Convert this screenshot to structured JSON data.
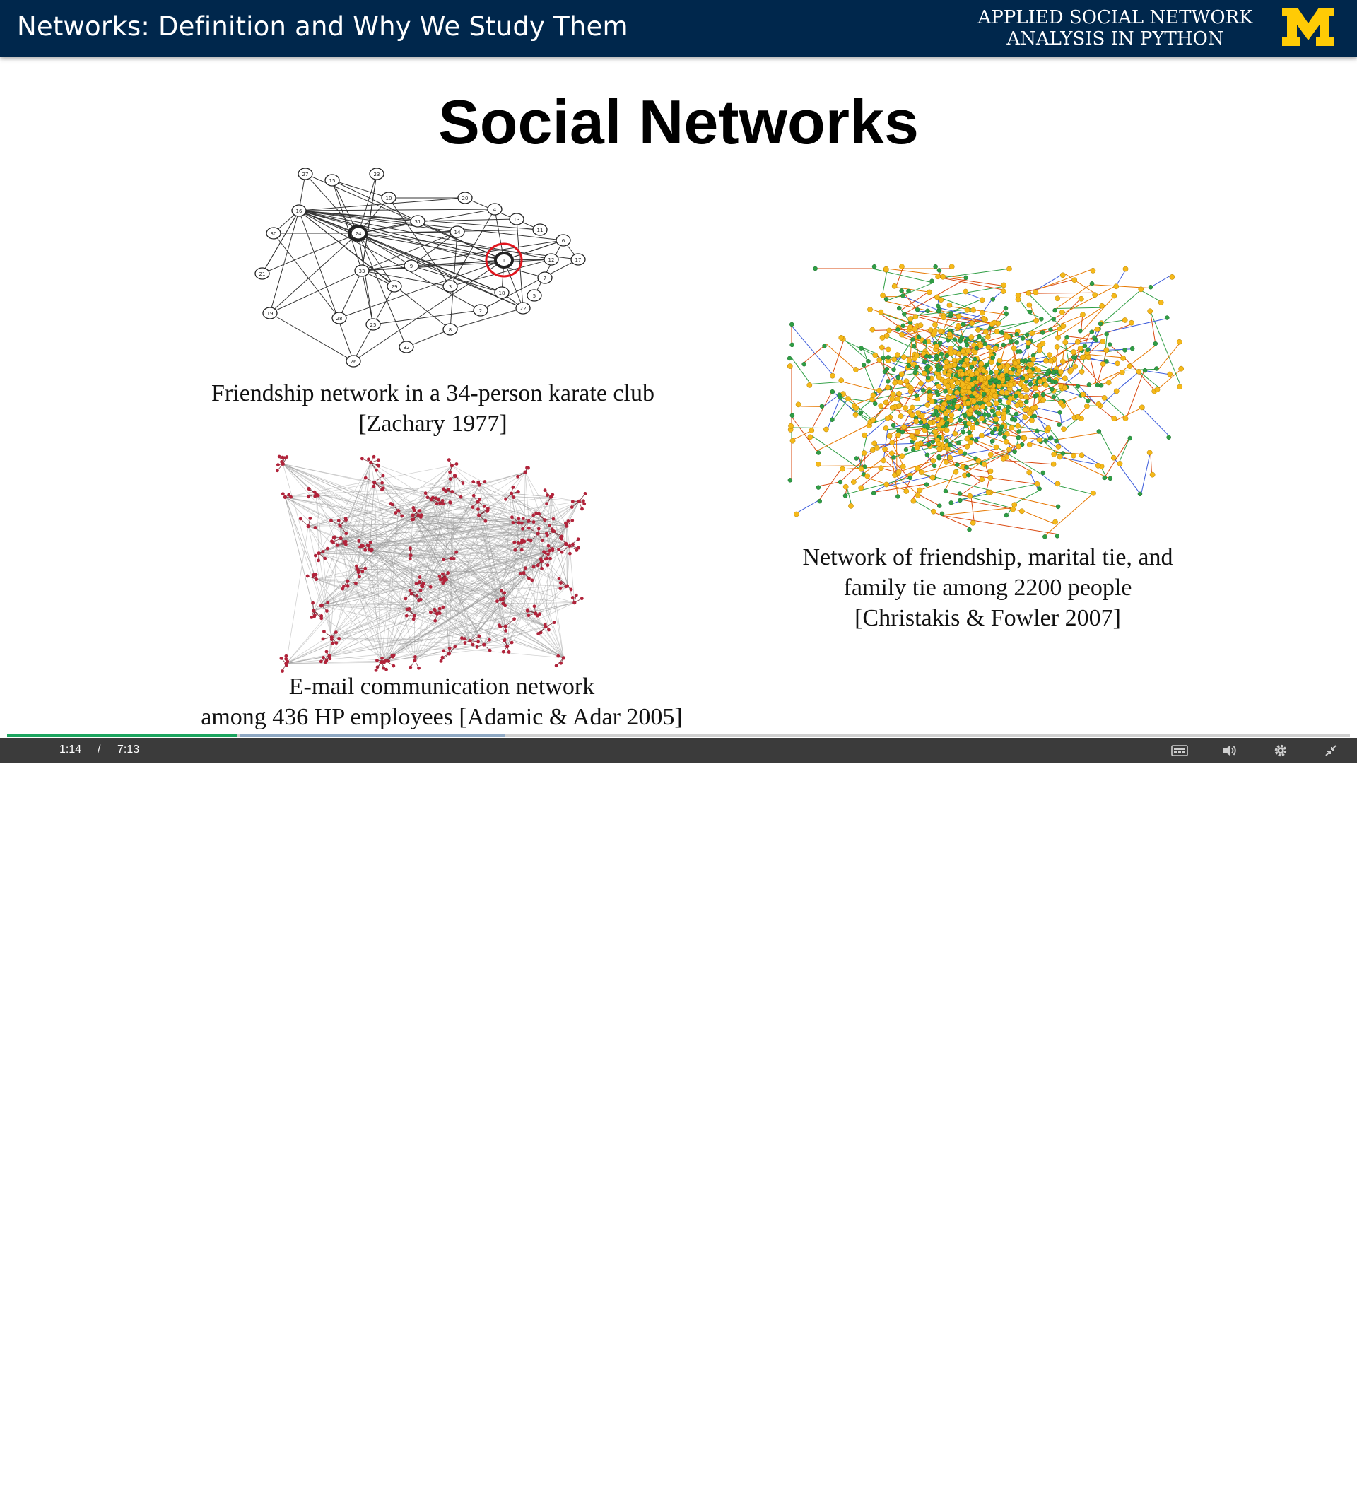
{
  "header": {
    "lecture_title": "Networks: Definition and Why We Study Them",
    "course_line1": "APPLIED SOCIAL NETWORK",
    "course_line2": "ANALYSIS IN PYTHON",
    "logo_letter": "M",
    "bg_color": "#00274c",
    "logo_color": "#ffcb05"
  },
  "slide": {
    "title": "Social Networks",
    "figures": [
      {
        "caption_lines": [
          "Friendship network in a 34-person karate club",
          "[Zachary 1977]"
        ],
        "node_labels": [
          "27",
          "15",
          "23",
          "16",
          "10",
          "20",
          "4",
          "13",
          "11",
          "6",
          "17",
          "34",
          "31",
          "14",
          "1",
          "12",
          "30",
          "24",
          "9",
          "7",
          "21",
          "33",
          "29",
          "3",
          "18",
          "5",
          "19",
          "28",
          "25",
          "2",
          "22",
          "8",
          "32",
          "26"
        ]
      },
      {
        "caption_lines": [
          "E-mail communication network",
          "among 436 HP employees [Adamic & Adar 2005]"
        ]
      },
      {
        "caption_lines": [
          "Network of friendship, marital tie, and",
          "family tie among 2200 people",
          "[Christakis & Fowler 2007]"
        ]
      }
    ]
  },
  "player": {
    "current_time": "1:14",
    "separator": "/",
    "duration": "7:13",
    "progress": 0.171,
    "played_color": "#1ca55f",
    "icons": [
      "play-icon",
      "captions-icon",
      "volume-icon",
      "settings-icon",
      "exit-fullscreen-icon"
    ]
  }
}
